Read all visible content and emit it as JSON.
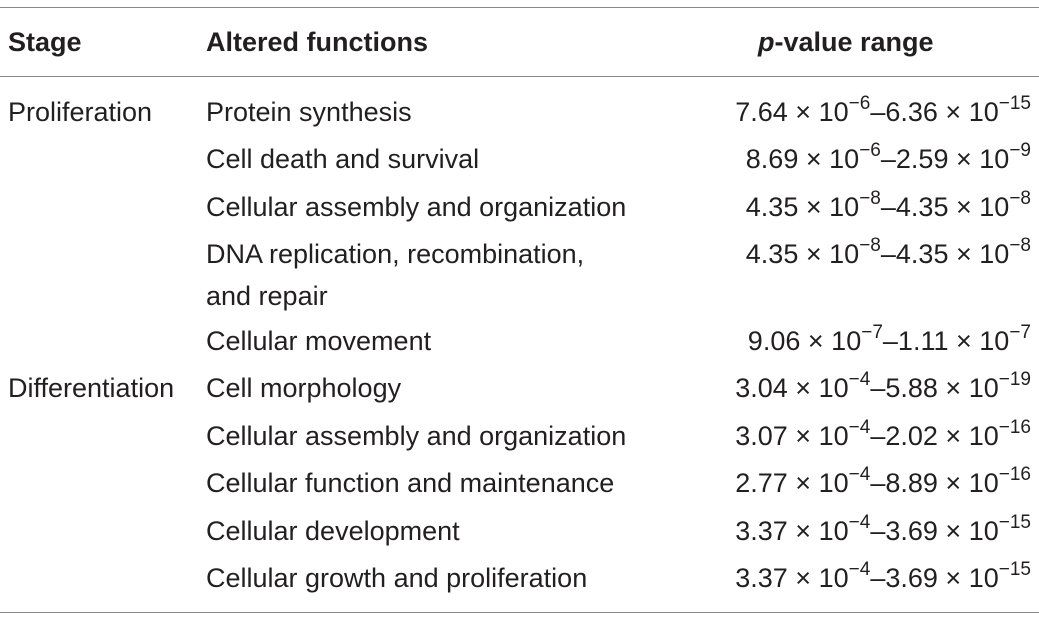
{
  "header": {
    "stage": "Stage",
    "functions": "Altered functions",
    "pvalue_italic": "p",
    "pvalue_rest": "-value range"
  },
  "rows": [
    {
      "stage": "Proliferation",
      "function_lines": [
        "Protein synthesis"
      ],
      "p_from": {
        "m": "7.64",
        "e": "−6"
      },
      "p_to": {
        "m": "6.36",
        "e": "−15"
      }
    },
    {
      "stage": "",
      "function_lines": [
        "Cell death and survival"
      ],
      "p_from": {
        "m": "8.69",
        "e": "−6"
      },
      "p_to": {
        "m": "2.59",
        "e": "−9"
      }
    },
    {
      "stage": "",
      "function_lines": [
        "Cellular assembly and organization"
      ],
      "p_from": {
        "m": "4.35",
        "e": "−8"
      },
      "p_to": {
        "m": "4.35",
        "e": "−8"
      }
    },
    {
      "stage": "",
      "function_lines": [
        "DNA replication, recombination,",
        "and repair"
      ],
      "p_from": {
        "m": "4.35",
        "e": "−8"
      },
      "p_to": {
        "m": "4.35",
        "e": "−8"
      }
    },
    {
      "stage": "",
      "function_lines": [
        "Cellular movement"
      ],
      "p_from": {
        "m": "9.06",
        "e": "−7"
      },
      "p_to": {
        "m": "1.11",
        "e": "−7"
      }
    },
    {
      "stage": "Differentiation",
      "function_lines": [
        "Cell morphology"
      ],
      "p_from": {
        "m": "3.04",
        "e": "−4"
      },
      "p_to": {
        "m": "5.88",
        "e": "−19"
      }
    },
    {
      "stage": "",
      "function_lines": [
        "Cellular assembly and organization"
      ],
      "p_from": {
        "m": "3.07",
        "e": "−4"
      },
      "p_to": {
        "m": "2.02",
        "e": "−16"
      }
    },
    {
      "stage": "",
      "function_lines": [
        "Cellular function and maintenance"
      ],
      "p_from": {
        "m": "2.77",
        "e": "−4"
      },
      "p_to": {
        "m": "8.89",
        "e": "−16"
      }
    },
    {
      "stage": "",
      "function_lines": [
        "Cellular development"
      ],
      "p_from": {
        "m": "3.37",
        "e": "−4"
      },
      "p_to": {
        "m": "3.69",
        "e": "−15"
      }
    },
    {
      "stage": "",
      "function_lines": [
        "Cellular growth and proliferation"
      ],
      "p_from": {
        "m": "3.37",
        "e": "−4"
      },
      "p_to": {
        "m": "3.69",
        "e": "−15"
      }
    }
  ],
  "notation": {
    "times": "×",
    "base": "10",
    "range_sep": "–"
  }
}
